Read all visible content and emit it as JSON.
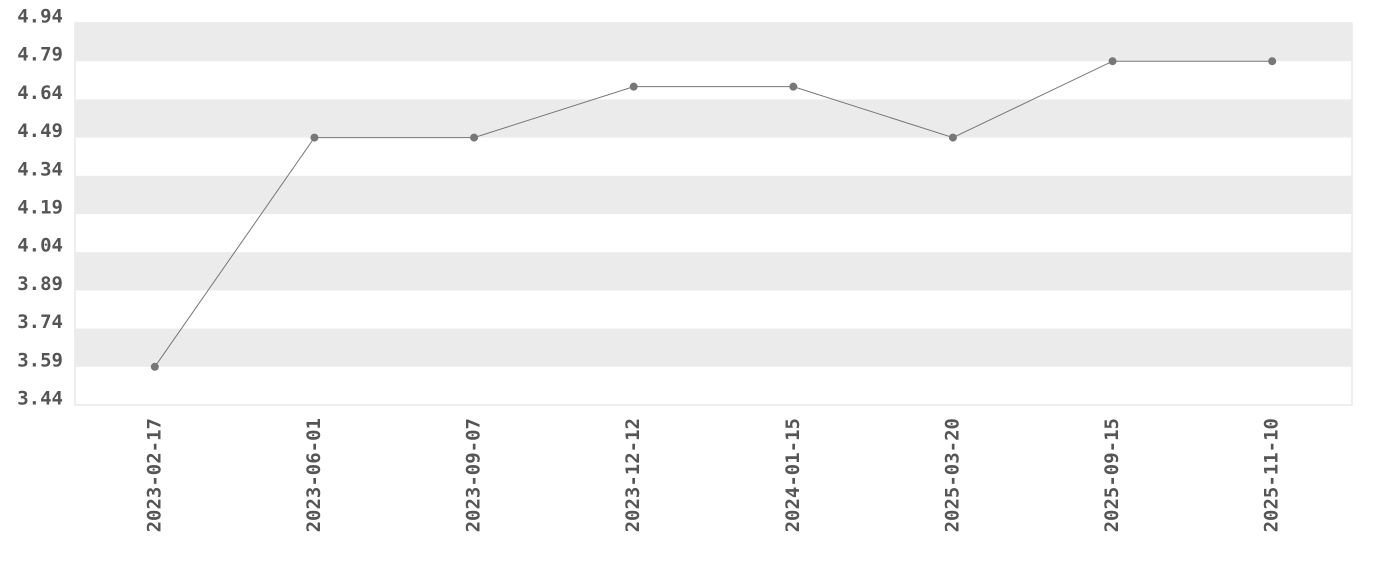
{
  "chart_data": {
    "type": "line",
    "categories": [
      "2023-02-17",
      "2023-06-01",
      "2023-09-07",
      "2023-12-12",
      "2024-01-15",
      "2025-03-20",
      "2025-09-15",
      "2025-11-10"
    ],
    "series": [
      {
        "name": "value",
        "color": "#777777",
        "values": [
          3.59,
          4.49,
          4.49,
          4.69,
          4.69,
          4.49,
          4.79,
          4.79
        ]
      }
    ],
    "ylim": [
      3.44,
      4.94
    ],
    "yticks": [
      3.44,
      3.59,
      3.74,
      3.89,
      4.04,
      4.19,
      4.34,
      4.49,
      4.64,
      4.79,
      4.94
    ],
    "grid": true
  }
}
